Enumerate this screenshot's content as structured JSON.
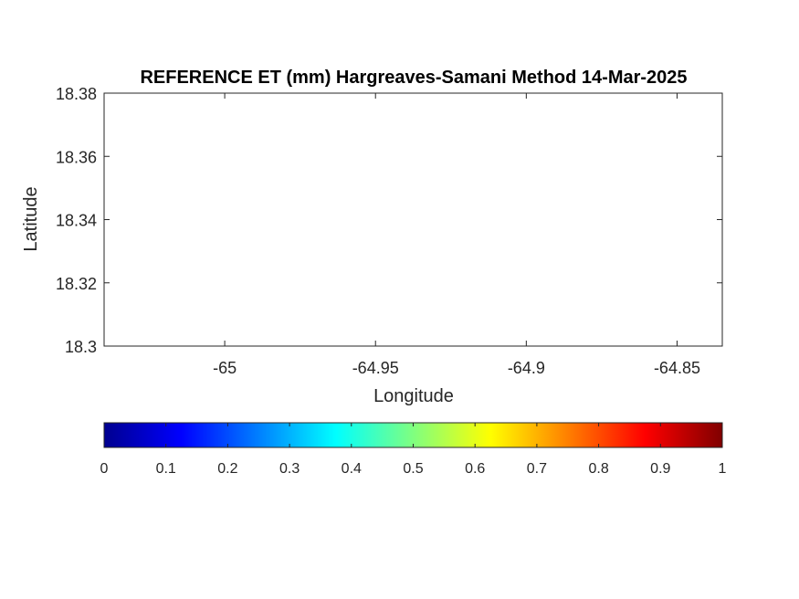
{
  "chart_data": {
    "type": "heatmap",
    "title": "REFERENCE ET (mm) Hargreaves-Samani Method  14-Mar-2025",
    "xlabel": "Longitude",
    "ylabel": "Latitude",
    "xlim": [
      -65.04,
      -64.835
    ],
    "ylim": [
      18.3,
      18.38
    ],
    "xticks": [
      -65,
      -64.95,
      -64.9,
      -64.85
    ],
    "xtick_labels": [
      "-65",
      "-64.95",
      "-64.9",
      "-64.85"
    ],
    "yticks": [
      18.3,
      18.32,
      18.34,
      18.36,
      18.38
    ],
    "ytick_labels": [
      "18.3",
      "18.32",
      "18.34",
      "18.36",
      "18.38"
    ],
    "grid": false,
    "values": [],
    "colorbar": {
      "orientation": "horizontal",
      "colormap": "jet",
      "limits": [
        0,
        1
      ],
      "ticks": [
        0,
        0.1,
        0.2,
        0.3,
        0.4,
        0.5,
        0.6,
        0.7,
        0.8,
        0.9,
        1
      ],
      "tick_labels": [
        "0",
        "0.1",
        "0.2",
        "0.3",
        "0.4",
        "0.5",
        "0.6",
        "0.7",
        "0.8",
        "0.9",
        "1"
      ]
    }
  },
  "colors": {
    "axis": "#262626",
    "background": "#ffffff"
  }
}
